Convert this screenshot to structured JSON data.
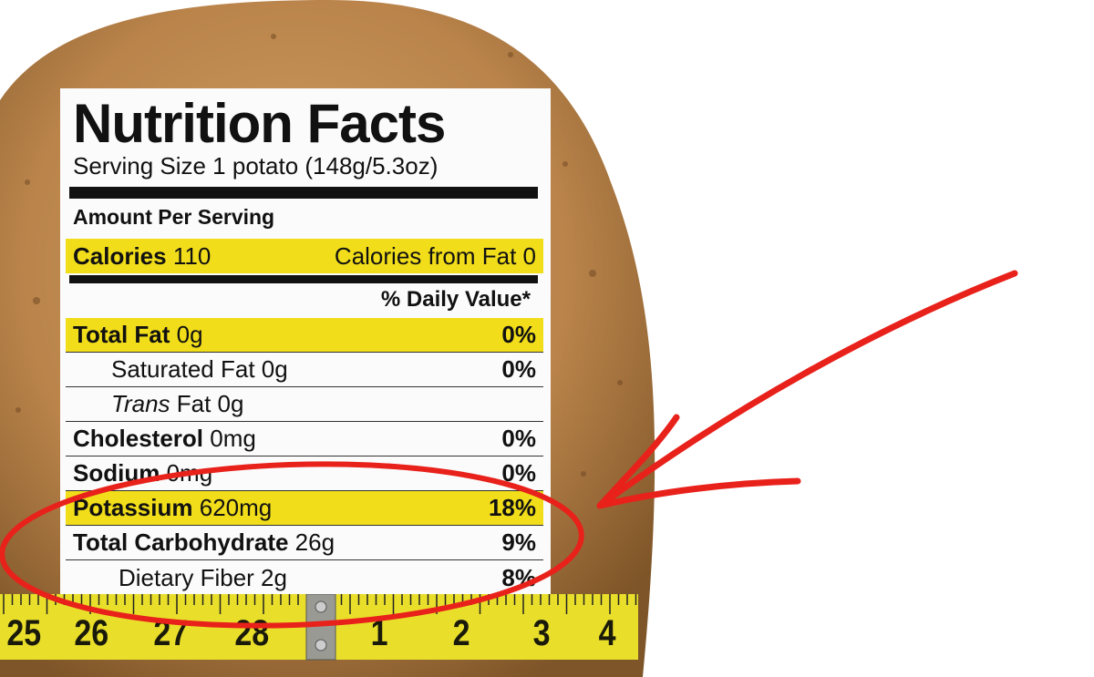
{
  "colors": {
    "potato": "#b9834a",
    "highlight": "#f1dd1a",
    "annotation_red": "#e8211b",
    "tape_yellow": "#e9df2a"
  },
  "label": {
    "title": "Nutrition Facts",
    "serving_size": "Serving Size 1 potato (148g/5.3oz)",
    "amount_per_serving": "Amount Per Serving",
    "calories": {
      "label": "Calories",
      "value": "110",
      "from_fat": "Calories from Fat 0"
    },
    "daily_value_header": "% Daily Value*",
    "rows": [
      {
        "name": "Total Fat",
        "amount": "0g",
        "dv": "0%"
      },
      {
        "name": "Saturated Fat 0g",
        "amount": "",
        "dv": "0%"
      },
      {
        "name": "Trans",
        "amount": "Fat 0g",
        "dv": ""
      },
      {
        "name": "Cholesterol",
        "amount": "0mg",
        "dv": "0%"
      },
      {
        "name": "Sodium",
        "amount": "0mg",
        "dv": "0%"
      },
      {
        "name": "Potassium",
        "amount": "620mg",
        "dv": "18%"
      },
      {
        "name": "Total Carbohydrate",
        "amount": "26g",
        "dv": "9%"
      },
      {
        "name": "Dietary Fiber 2g",
        "amount": "",
        "dv": "8%"
      }
    ]
  },
  "tape_measure": {
    "numbers": [
      "25",
      "26",
      "27",
      "28",
      "1",
      "2",
      "3",
      "4"
    ]
  }
}
